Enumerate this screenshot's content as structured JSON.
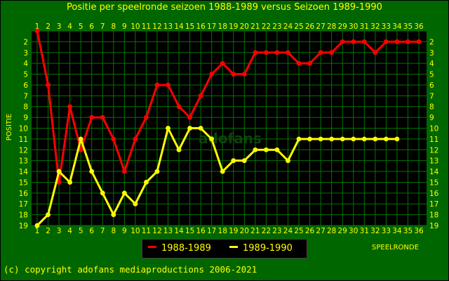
{
  "title": "Positie per speelronde seizoen 1988-1989 versus Seizoen 1989-1990",
  "copyright": "(c) copyright adofans mediaproductions 2006-2021",
  "watermark": "adofans",
  "colors": {
    "background": "#006600",
    "plot_background": "#000000",
    "grid": "#007700",
    "text": "#ffff00",
    "series_1988_1989": "#ff0000",
    "series_1989_1990": "#ffff00"
  },
  "chart_data": {
    "type": "line",
    "title": "Positie per speelronde seizoen 1988-1989 versus Seizoen 1989-1990",
    "xlabel": "SPEELRONDE",
    "ylabel": "POSITIE",
    "x_ticks": [
      "1",
      "2",
      "3",
      "4",
      "5",
      "6",
      "7",
      "8",
      "9",
      "10",
      "11",
      "12",
      "13",
      "14",
      "15",
      "16",
      "17",
      "18",
      "19",
      "20",
      "21",
      "22",
      "23",
      "24",
      "25",
      "26",
      "27",
      "28",
      "29",
      "30",
      "31",
      "32",
      "33",
      "34",
      "35",
      "36"
    ],
    "y_ticks": [
      "2",
      "3",
      "4",
      "5",
      "6",
      "7",
      "8",
      "9",
      "10",
      "11",
      "12",
      "13",
      "14",
      "15",
      "16",
      "17",
      "18",
      "19"
    ],
    "xlim": [
      1,
      36
    ],
    "ylim": [
      1,
      19
    ],
    "y_inverted": true,
    "grid": true,
    "legend_position": "bottom-center",
    "series": [
      {
        "name": "1988-1989",
        "color": "#ff0000",
        "x": [
          1,
          2,
          3,
          4,
          5,
          6,
          7,
          8,
          9,
          10,
          11,
          12,
          13,
          14,
          15,
          16,
          17,
          18,
          19,
          20,
          21,
          22,
          23,
          24,
          25,
          26,
          27,
          28,
          29,
          30,
          31,
          32,
          33,
          34,
          35,
          36
        ],
        "values": [
          1,
          6,
          15,
          8,
          12,
          9,
          9,
          11,
          14,
          11,
          9,
          6,
          6,
          8,
          9,
          7,
          5,
          4,
          5,
          5,
          3,
          3,
          3,
          3,
          4,
          4,
          3,
          3,
          2,
          2,
          2,
          3,
          2,
          2,
          2,
          2
        ]
      },
      {
        "name": "1989-1990",
        "color": "#ffff00",
        "x": [
          1,
          2,
          3,
          4,
          5,
          6,
          7,
          8,
          9,
          10,
          11,
          12,
          13,
          14,
          15,
          16,
          17,
          18,
          19,
          20,
          21,
          22,
          23,
          24,
          25,
          26,
          27,
          28,
          29,
          30,
          31,
          32,
          33,
          34
        ],
        "values": [
          19,
          18,
          14,
          15,
          11,
          14,
          16,
          18,
          16,
          17,
          15,
          14,
          10,
          12,
          10,
          10,
          11,
          14,
          13,
          13,
          12,
          12,
          12,
          13,
          11,
          11,
          11,
          11,
          11,
          11,
          11,
          11,
          11,
          11
        ]
      }
    ]
  }
}
